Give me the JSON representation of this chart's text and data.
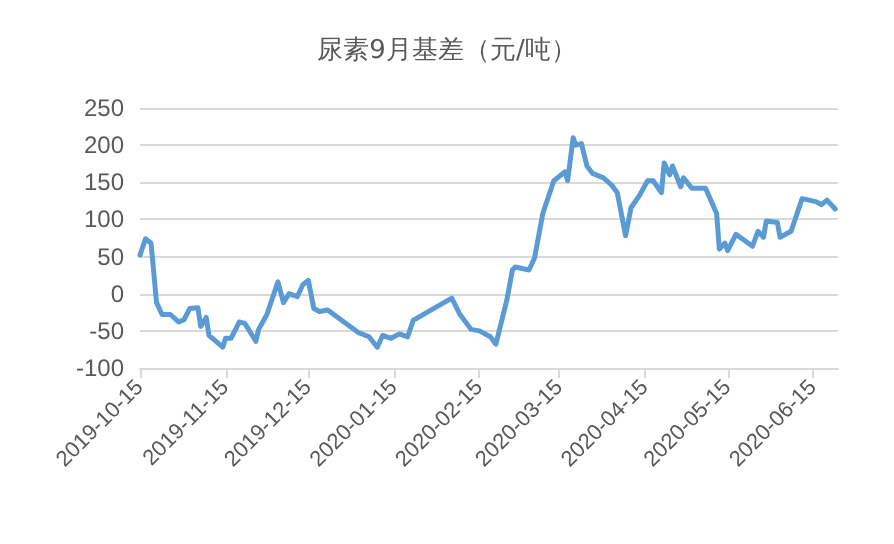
{
  "chart_data": {
    "type": "line",
    "title": "尿素9月基差（元/吨）",
    "x": [
      "2019-10-15",
      "2019-10-17",
      "2019-10-19",
      "2019-10-21",
      "2019-10-23",
      "2019-10-26",
      "2019-10-29",
      "2019-10-31",
      "2019-11-02",
      "2019-11-05",
      "2019-11-06",
      "2019-11-08",
      "2019-11-09",
      "2019-11-14",
      "2019-11-15",
      "2019-11-17",
      "2019-11-20",
      "2019-11-22",
      "2019-11-26",
      "2019-11-27",
      "2019-11-30",
      "2019-12-04",
      "2019-12-06",
      "2019-12-08",
      "2019-12-11",
      "2019-12-13",
      "2019-12-15",
      "2019-12-17",
      "2019-12-19",
      "2019-12-22",
      "2020-01-02",
      "2020-01-06",
      "2020-01-09",
      "2020-01-11",
      "2020-01-14",
      "2020-01-17",
      "2020-01-20",
      "2020-01-22",
      "2020-02-05",
      "2020-02-08",
      "2020-02-12",
      "2020-02-15",
      "2020-02-19",
      "2020-02-21",
      "2020-02-25",
      "2020-02-27",
      "2020-02-28",
      "2020-03-04",
      "2020-03-06",
      "2020-03-09",
      "2020-03-13",
      "2020-03-17",
      "2020-03-18",
      "2020-03-20",
      "2020-03-21",
      "2020-03-23",
      "2020-03-25",
      "2020-03-27",
      "2020-03-31",
      "2020-04-03",
      "2020-04-05",
      "2020-04-08",
      "2020-04-10",
      "2020-04-13",
      "2020-04-16",
      "2020-04-18",
      "2020-04-21",
      "2020-04-22",
      "2020-04-24",
      "2020-04-25",
      "2020-04-28",
      "2020-04-29",
      "2020-05-02",
      "2020-05-07",
      "2020-05-11",
      "2020-05-12",
      "2020-05-14",
      "2020-05-15",
      "2020-05-18",
      "2020-05-21",
      "2020-05-24",
      "2020-05-26",
      "2020-05-28",
      "2020-05-29",
      "2020-06-02",
      "2020-06-03",
      "2020-06-07",
      "2020-06-11",
      "2020-06-16",
      "2020-06-18",
      "2020-06-20",
      "2020-06-23"
    ],
    "series": [
      {
        "color": "#5b9bd5",
        "values": [
          52,
          74,
          68,
          -12,
          -28,
          -28,
          -38,
          -35,
          -20,
          -19,
          -44,
          -32,
          -56,
          -72,
          -60,
          -60,
          -38,
          -40,
          -64,
          -48,
          -28,
          16,
          -12,
          0,
          -4,
          12,
          18,
          -20,
          -24,
          -22,
          -52,
          -58,
          -72,
          -56,
          -60,
          -54,
          -58,
          -36,
          -6,
          -28,
          -48,
          -50,
          -58,
          -68,
          -8,
          32,
          36,
          32,
          48,
          108,
          152,
          164,
          152,
          210,
          200,
          202,
          172,
          162,
          156,
          146,
          136,
          78,
          116,
          132,
          152,
          152,
          136,
          176,
          160,
          172,
          144,
          156,
          142,
          142,
          108,
          60,
          68,
          58,
          80,
          72,
          64,
          84,
          76,
          98,
          96,
          76,
          84,
          128,
          124,
          120,
          126,
          114
        ]
      }
    ],
    "xlim": [
      "2019-10-15",
      "2020-06-24"
    ],
    "xticks": [
      "2019-10-15",
      "2019-11-15",
      "2019-12-15",
      "2020-01-15",
      "2020-02-15",
      "2020-03-15",
      "2020-04-15",
      "2020-05-15",
      "2020-06-15"
    ],
    "ylim": [
      -100,
      250
    ],
    "yticks": [
      -100,
      -50,
      0,
      50,
      100,
      150,
      200,
      250
    ],
    "grid": "y",
    "marker": "none",
    "line_style": "solid"
  }
}
